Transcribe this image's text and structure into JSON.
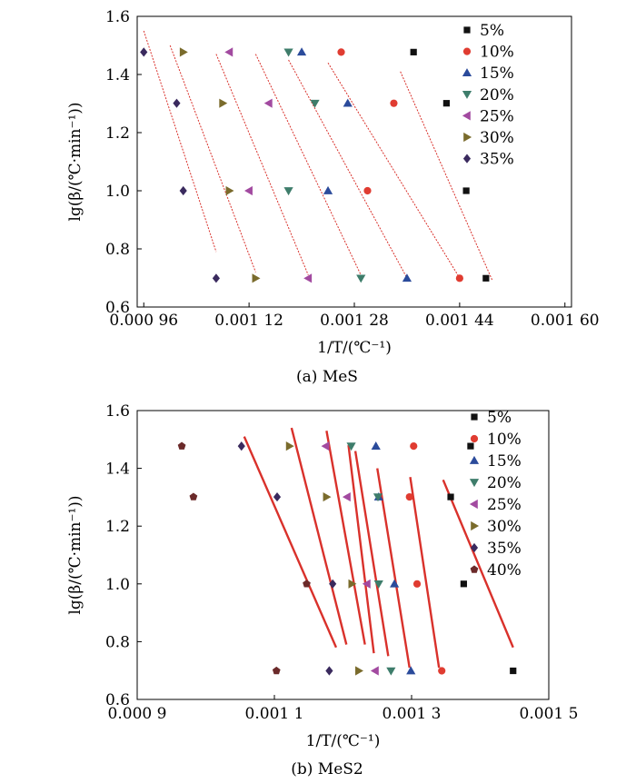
{
  "chart_data": [
    {
      "type": "scatter",
      "caption": "(a) MeS",
      "xlabel": "1/T/(℃⁻¹)",
      "ylabel": "lg(β/(℃·min⁻¹))",
      "xlim": [
        0.00095,
        0.00161
      ],
      "ylim": [
        0.6,
        1.6
      ],
      "xticks": [
        {
          "v": 0.00096,
          "label": "0.000 96"
        },
        {
          "v": 0.00112,
          "label": "0.001 12"
        },
        {
          "v": 0.00128,
          "label": "0.001 28"
        },
        {
          "v": 0.00144,
          "label": "0.001 44"
        },
        {
          "v": 0.0016,
          "label": "0.001 60"
        }
      ],
      "yticks": [
        {
          "v": 0.6,
          "label": "0.6"
        },
        {
          "v": 0.8,
          "label": "0.8"
        },
        {
          "v": 1.0,
          "label": "1.0"
        },
        {
          "v": 1.2,
          "label": "1.2"
        },
        {
          "v": 1.4,
          "label": "1.4"
        },
        {
          "v": 1.6,
          "label": "1.6"
        }
      ],
      "legend_position": "top-right",
      "fit_line_style": "thin dotted red",
      "series": [
        {
          "name": "5%",
          "marker": "square",
          "color": "#111111",
          "points": [
            [
              0.00137,
              1.477
            ],
            [
              0.00142,
              1.301
            ],
            [
              0.00145,
              1.0
            ],
            [
              0.00148,
              0.699
            ]
          ],
          "fit": [
            [
              0.00135,
              1.41
            ],
            [
              0.00149,
              0.69
            ]
          ]
        },
        {
          "name": "10%",
          "marker": "circle",
          "color": "#e03c31",
          "points": [
            [
              0.00126,
              1.477
            ],
            [
              0.00134,
              1.301
            ],
            [
              0.0013,
              1.0
            ],
            [
              0.00144,
              0.699
            ]
          ],
          "fit": [
            [
              0.00124,
              1.44
            ],
            [
              0.00144,
              0.7
            ]
          ]
        },
        {
          "name": "15%",
          "marker": "triangle-up",
          "color": "#2b4b9b",
          "points": [
            [
              0.0012,
              1.477
            ],
            [
              0.00127,
              1.301
            ],
            [
              0.00124,
              1.0
            ],
            [
              0.00136,
              0.699
            ]
          ],
          "fit": [
            [
              0.00118,
              1.45
            ],
            [
              0.00136,
              0.7
            ]
          ]
        },
        {
          "name": "20%",
          "marker": "triangle-down",
          "color": "#3e7d6b",
          "points": [
            [
              0.00118,
              1.477
            ],
            [
              0.00122,
              1.301
            ],
            [
              0.00118,
              1.0
            ],
            [
              0.00129,
              0.699
            ]
          ],
          "fit": [
            [
              0.00113,
              1.47
            ],
            [
              0.00129,
              0.71
            ]
          ]
        },
        {
          "name": "25%",
          "marker": "triangle-left",
          "color": "#a24aa0",
          "points": [
            [
              0.00109,
              1.477
            ],
            [
              0.00115,
              1.301
            ],
            [
              0.00112,
              1.0
            ],
            [
              0.00121,
              0.699
            ]
          ],
          "fit": [
            [
              0.00107,
              1.47
            ],
            [
              0.00121,
              0.71
            ]
          ]
        },
        {
          "name": "30%",
          "marker": "triangle-right",
          "color": "#7a6b2c",
          "points": [
            [
              0.00102,
              1.477
            ],
            [
              0.00108,
              1.301
            ],
            [
              0.00109,
              1.0
            ],
            [
              0.00113,
              0.699
            ]
          ],
          "fit": [
            [
              0.001,
              1.5
            ],
            [
              0.00113,
              0.72
            ]
          ]
        },
        {
          "name": "35%",
          "marker": "diamond",
          "color": "#3a2a5e",
          "points": [
            [
              0.00096,
              1.477
            ],
            [
              0.00101,
              1.301
            ],
            [
              0.00102,
              1.0
            ],
            [
              0.00107,
              0.699
            ]
          ],
          "fit": [
            [
              0.00096,
              1.55
            ],
            [
              0.00107,
              0.79
            ]
          ]
        }
      ]
    },
    {
      "type": "scatter",
      "caption": "(b) MeS2",
      "xlabel": "1/T/(℃⁻¹)",
      "ylabel": "lg(β/(℃·min⁻¹))",
      "xlim": [
        0.0009,
        0.0015
      ],
      "ylim": [
        0.6,
        1.6
      ],
      "xticks": [
        {
          "v": 0.0009,
          "label": "0.000 9"
        },
        {
          "v": 0.0011,
          "label": "0.001 1"
        },
        {
          "v": 0.0013,
          "label": "0.001 3"
        },
        {
          "v": 0.0015,
          "label": "0.001 5"
        }
      ],
      "yticks": [
        {
          "v": 0.6,
          "label": "0.6"
        },
        {
          "v": 0.8,
          "label": "0.8"
        },
        {
          "v": 1.0,
          "label": "1.0"
        },
        {
          "v": 1.2,
          "label": "1.2"
        },
        {
          "v": 1.4,
          "label": "1.4"
        },
        {
          "v": 1.6,
          "label": "1.6"
        }
      ],
      "legend_position": "top-right",
      "fit_line_style": "thick solid red",
      "series": [
        {
          "name": "5%",
          "marker": "square",
          "color": "#111111",
          "points": [
            [
              0.001386,
              1.477
            ],
            [
              0.001357,
              1.301
            ],
            [
              0.001376,
              1.0
            ],
            [
              0.001448,
              0.699
            ]
          ],
          "fit": [
            [
              0.001346,
              1.36
            ],
            [
              0.001448,
              0.78
            ]
          ]
        },
        {
          "name": "10%",
          "marker": "circle",
          "color": "#e03c31",
          "points": [
            [
              0.001303,
              1.477
            ],
            [
              0.001297,
              1.301
            ],
            [
              0.001308,
              1.0
            ],
            [
              0.001344,
              0.699
            ]
          ],
          "fit": [
            [
              0.001298,
              1.37
            ],
            [
              0.00134,
              0.71
            ]
          ]
        },
        {
          "name": "15%",
          "marker": "triangle-up",
          "color": "#2b4b9b",
          "points": [
            [
              0.001248,
              1.477
            ],
            [
              0.001252,
              1.301
            ],
            [
              0.001275,
              1.0
            ],
            [
              0.001299,
              0.699
            ]
          ],
          "fit": [
            [
              0.00125,
              1.4
            ],
            [
              0.001297,
              0.71
            ]
          ]
        },
        {
          "name": "20%",
          "marker": "triangle-down",
          "color": "#3e7d6b",
          "points": [
            [
              0.001212,
              1.477
            ],
            [
              0.001251,
              1.301
            ],
            [
              0.001252,
              1.0
            ],
            [
              0.00127,
              0.699
            ]
          ],
          "fit": [
            [
              0.001218,
              1.46
            ],
            [
              0.001266,
              0.75
            ]
          ]
        },
        {
          "name": "25%",
          "marker": "triangle-left",
          "color": "#a24aa0",
          "points": [
            [
              0.001175,
              1.477
            ],
            [
              0.001206,
              1.301
            ],
            [
              0.001235,
              1.0
            ],
            [
              0.001247,
              0.699
            ]
          ],
          "fit": [
            [
              0.001208,
              1.48
            ],
            [
              0.001245,
              0.76
            ]
          ]
        },
        {
          "name": "30%",
          "marker": "triangle-right",
          "color": "#7a6b2c",
          "points": [
            [
              0.001122,
              1.477
            ],
            [
              0.001176,
              1.301
            ],
            [
              0.001213,
              1.0
            ],
            [
              0.001223,
              0.699
            ]
          ],
          "fit": [
            [
              0.001176,
              1.53
            ],
            [
              0.001232,
              0.79
            ]
          ]
        },
        {
          "name": "35%",
          "marker": "diamond",
          "color": "#3a2a5e",
          "points": [
            [
              0.001052,
              1.477
            ],
            [
              0.001104,
              1.301
            ],
            [
              0.001185,
              1.0
            ],
            [
              0.00118,
              0.699
            ]
          ],
          "fit": [
            [
              0.001125,
              1.54
            ],
            [
              0.001205,
              0.79
            ]
          ]
        },
        {
          "name": "40%",
          "marker": "pentagon",
          "color": "#6b2a2a",
          "points": [
            [
              0.000965,
              1.477
            ],
            [
              0.000982,
              1.301
            ],
            [
              0.001147,
              1.0
            ],
            [
              0.001103,
              0.699
            ]
          ],
          "fit": [
            [
              0.001056,
              1.51
            ],
            [
              0.00119,
              0.78
            ]
          ]
        }
      ]
    }
  ]
}
